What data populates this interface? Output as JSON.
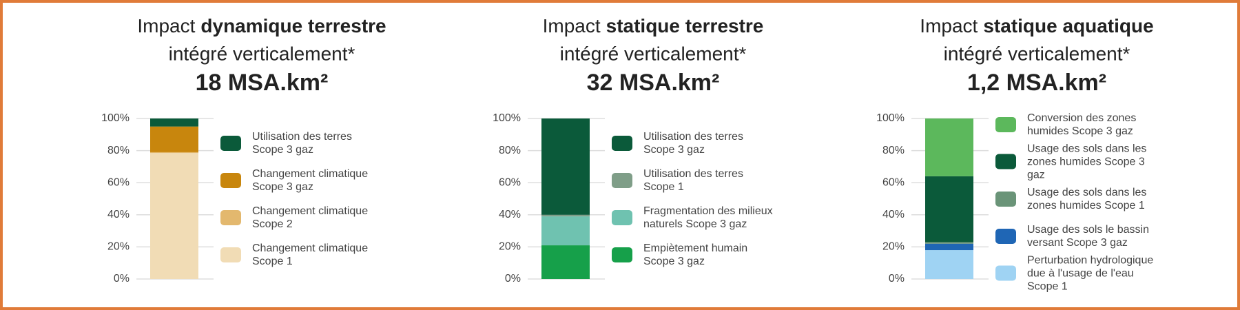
{
  "chart_data": [
    {
      "type": "stacked_bar",
      "title": "Impact",
      "title_emphasis": "dynamique terrestre",
      "subtitle": "intégré verticalement*",
      "total": "18 MSA.km²",
      "ylim": [
        0,
        100
      ],
      "yticks": [
        {
          "value": 0,
          "label": "0%"
        },
        {
          "value": 20,
          "label": "20%"
        },
        {
          "value": 40,
          "label": "40%"
        },
        {
          "value": 60,
          "label": "60%"
        },
        {
          "value": 80,
          "label": "80%"
        },
        {
          "value": 100,
          "label": "100%"
        }
      ],
      "series": [
        {
          "name": "Utilisation des terres Scope 3 gaz",
          "color": "#0b5a3a",
          "values": [
            5
          ]
        },
        {
          "name": "Changement climatique Scope 3 gaz",
          "color": "#c8860d",
          "values": [
            16
          ]
        },
        {
          "name": "Changement climatique Scope 2",
          "color": "#e3b86e",
          "values": [
            0.5
          ]
        },
        {
          "name": "Changement climatique Scope 1",
          "color": "#f1dcb5",
          "values": [
            78.5
          ]
        }
      ]
    },
    {
      "type": "stacked_bar",
      "title": "Impact",
      "title_emphasis": "statique terrestre",
      "subtitle": "intégré verticalement*",
      "total": "32 MSA.km²",
      "ylim": [
        0,
        100
      ],
      "yticks": [
        {
          "value": 0,
          "label": "0%"
        },
        {
          "value": 20,
          "label": "20%"
        },
        {
          "value": 40,
          "label": "40%"
        },
        {
          "value": 60,
          "label": "60%"
        },
        {
          "value": 80,
          "label": "80%"
        },
        {
          "value": 100,
          "label": "100%"
        }
      ],
      "series": [
        {
          "name": "Utilisation des terres Scope 3 gaz",
          "color": "#0b5a3a",
          "values": [
            60
          ]
        },
        {
          "name": "Utilisation des terres Scope 1",
          "color": "#7f9e88",
          "values": [
            1
          ]
        },
        {
          "name": "Fragmentation des milieux naturels Scope 3 gaz",
          "color": "#6fc2b0",
          "values": [
            18
          ]
        },
        {
          "name": "Empiètement humain Scope 3 gaz",
          "color": "#16a04a",
          "values": [
            21
          ]
        }
      ]
    },
    {
      "type": "stacked_bar",
      "title": "Impact",
      "title_emphasis": "statique aquatique",
      "subtitle": "intégré verticalement*",
      "total": "1,2 MSA.km²",
      "ylim": [
        0,
        100
      ],
      "yticks": [
        {
          "value": 0,
          "label": "0%"
        },
        {
          "value": 20,
          "label": "20%"
        },
        {
          "value": 40,
          "label": "40%"
        },
        {
          "value": 60,
          "label": "60%"
        },
        {
          "value": 80,
          "label": "80%"
        },
        {
          "value": 100,
          "label": "100%"
        }
      ],
      "series": [
        {
          "name": "Conversion des zones humides Scope 3 gaz",
          "color": "#5cb85c",
          "values": [
            36
          ]
        },
        {
          "name": "Usage des sols dans les zones humides Scope 3 gaz",
          "color": "#0b5a3a",
          "values": [
            41
          ]
        },
        {
          "name": "Usage des sols dans les zones humides Scope 1",
          "color": "#6a9478",
          "values": [
            1
          ]
        },
        {
          "name": "Usage des sols le bassin versant Scope 3 gaz",
          "color": "#1f66b5",
          "values": [
            4
          ]
        },
        {
          "name": "Perturbation hydrologique due à l'usage de l'eau Scope 1",
          "color": "#9fd3f3",
          "values": [
            18
          ]
        }
      ]
    }
  ]
}
